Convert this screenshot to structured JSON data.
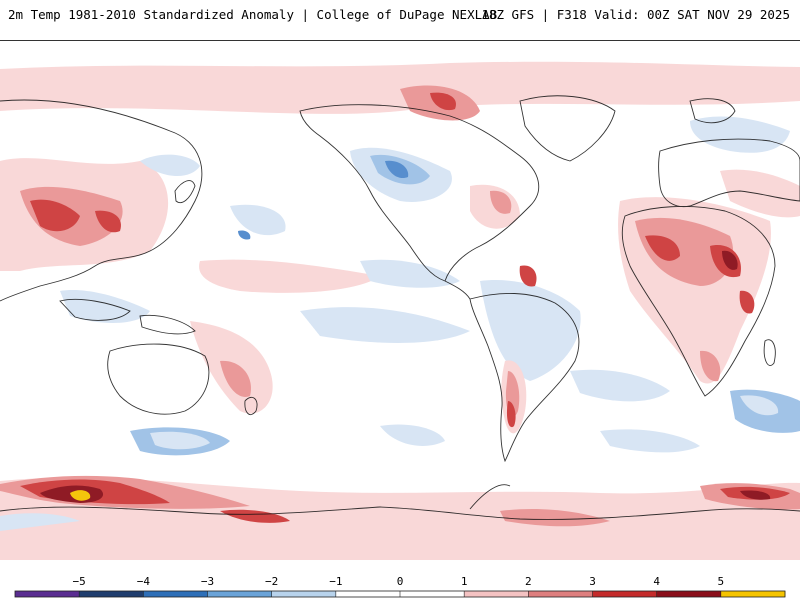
{
  "header": {
    "title": "2m Temp 1981-2010 Standardized Anomaly | College of DuPage NEXLAB",
    "run_info": "18Z GFS | F318 Valid: 00Z SAT NOV 29 2025"
  },
  "legend": {
    "ticks": [
      "−5",
      "−4",
      "−3",
      "−2",
      "−1",
      "0",
      "1",
      "2",
      "3",
      "4",
      "5"
    ],
    "colors": [
      "#5a2d91",
      "#1f3d6e",
      "#2e6fb8",
      "#6aa3d8",
      "#b8d3ec",
      "#ffffff",
      "#ffffff",
      "#f4c2c2",
      "#de7f7f",
      "#c42b2b",
      "#8a0f1a",
      "#f5c400"
    ]
  },
  "map": {
    "projection": "global",
    "colors": {
      "warm_light": "#f9d6d6",
      "warm_mid": "#e99494",
      "warm_strong": "#cd3b3b",
      "warm_extreme": "#8a0f1a",
      "cold_light": "#d6e4f4",
      "cold_mid": "#9cc0e6",
      "cold_strong": "#4f89cc",
      "extreme_yellow": "#f5c400",
      "coastline": "#111111"
    }
  }
}
